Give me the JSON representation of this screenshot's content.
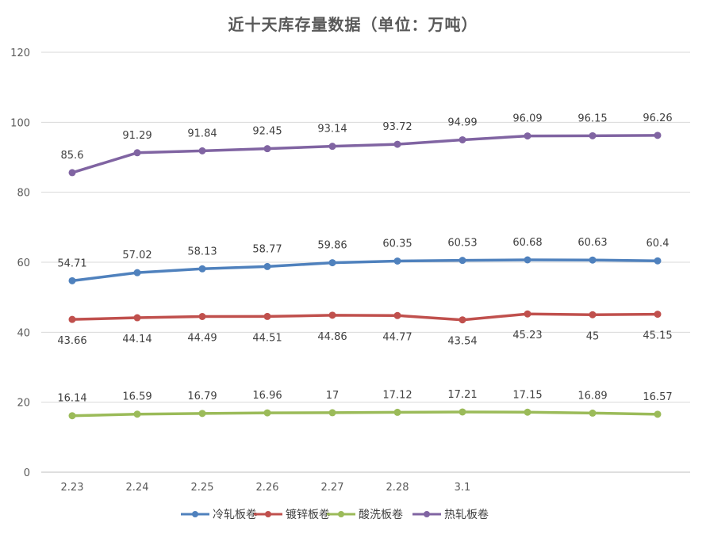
{
  "chart_data": {
    "type": "line",
    "title": "近十天库存量数据（单位：万吨）",
    "xlabel": "",
    "ylabel": "",
    "categories": [
      "2.23",
      "2.24",
      "2.25",
      "2.26",
      "2.27",
      "2.28",
      "3.1",
      "",
      "",
      ""
    ],
    "ylim": [
      0,
      120
    ],
    "yticks": [
      0,
      20,
      40,
      60,
      80,
      100,
      120
    ],
    "grid": true,
    "legend_position": "bottom",
    "series": [
      {
        "name": "冷轧板卷",
        "color": "#4f81bd",
        "label_position": "above",
        "values": [
          54.71,
          57.02,
          58.13,
          58.77,
          59.86,
          60.35,
          60.53,
          60.68,
          60.63,
          60.4
        ]
      },
      {
        "name": "镀锌板卷",
        "color": "#c0504d",
        "label_position": "below",
        "values": [
          43.66,
          44.14,
          44.49,
          44.51,
          44.86,
          44.77,
          43.54,
          45.23,
          45,
          45.15
        ]
      },
      {
        "name": "酸洗板卷",
        "color": "#9bbb59",
        "label_position": "above",
        "values": [
          16.14,
          16.59,
          16.79,
          16.96,
          17,
          17.12,
          17.21,
          17.15,
          16.89,
          16.57
        ]
      },
      {
        "name": "热轧板卷",
        "color": "#8064a2",
        "label_position": "above",
        "values": [
          85.6,
          91.29,
          91.84,
          92.45,
          93.14,
          93.72,
          94.99,
          96.09,
          96.15,
          96.26
        ]
      }
    ]
  }
}
